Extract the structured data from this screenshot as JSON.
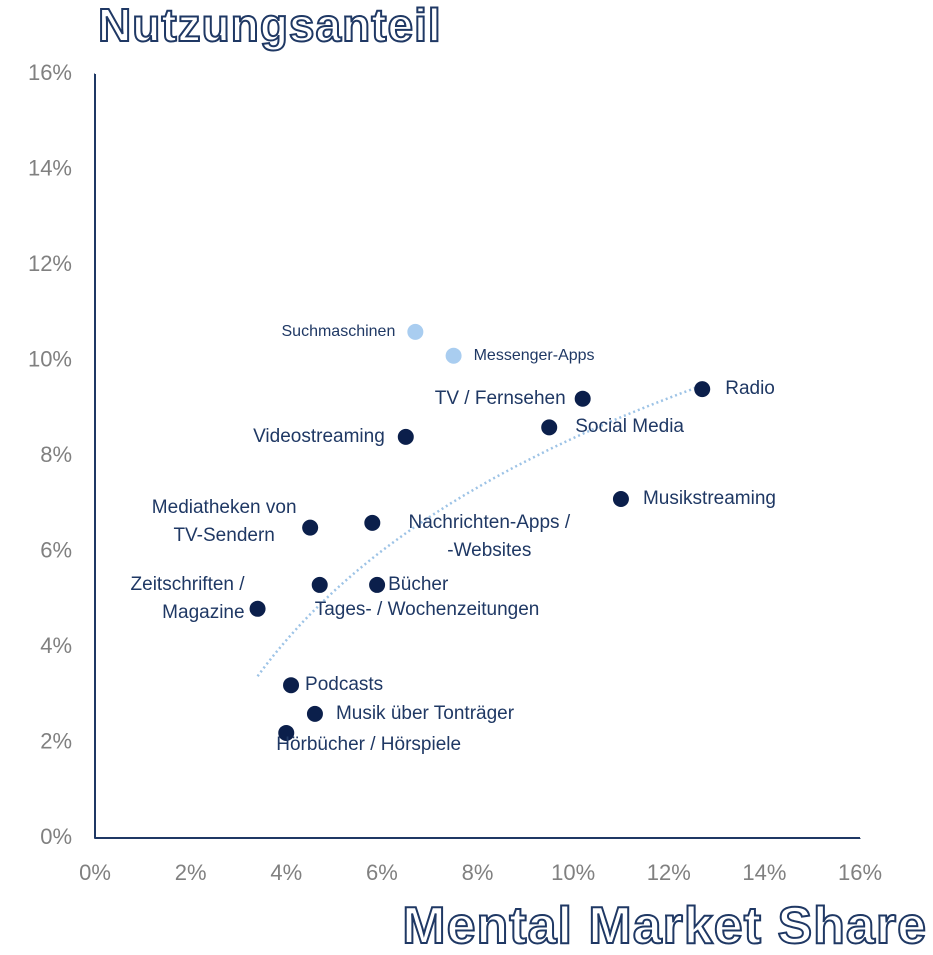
{
  "chart_data": {
    "type": "scatter",
    "title": "Nutzungsanteil",
    "x_label": "Mental Market Share",
    "xlim": [
      0,
      16
    ],
    "ylim": [
      0,
      16
    ],
    "xticks": [
      {
        "value": 0,
        "label": "0%"
      },
      {
        "value": 2,
        "label": "2%"
      },
      {
        "value": 4,
        "label": "4%"
      },
      {
        "value": 6,
        "label": "6%"
      },
      {
        "value": 8,
        "label": "8%"
      },
      {
        "value": 10,
        "label": "10%"
      },
      {
        "value": 12,
        "label": "12%"
      },
      {
        "value": 14,
        "label": "14%"
      },
      {
        "value": 16,
        "label": "16%"
      }
    ],
    "yticks": [
      {
        "value": 0,
        "label": "0%"
      },
      {
        "value": 2,
        "label": "2%"
      },
      {
        "value": 4,
        "label": "4%"
      },
      {
        "value": 6,
        "label": "6%"
      },
      {
        "value": 8,
        "label": "8%"
      },
      {
        "value": 10,
        "label": "10%"
      },
      {
        "value": 12,
        "label": "12%"
      },
      {
        "value": 14,
        "label": "14%"
      },
      {
        "value": 16,
        "label": "16%"
      }
    ],
    "trendline": "logarithmic",
    "trendline_color": "#9dc3e6",
    "points": [
      {
        "label": "Suchmaschinen",
        "x": 6.7,
        "y": 10.6,
        "color": "#a9cdf0"
      },
      {
        "label": "Messenger-Apps",
        "x": 7.5,
        "y": 10.1,
        "color": "#a9cdf0"
      },
      {
        "label": "TV / Fernsehen",
        "x": 10.2,
        "y": 9.2,
        "color": "#0b1f4b"
      },
      {
        "label": "Radio",
        "x": 12.7,
        "y": 9.4,
        "color": "#0b1f4b"
      },
      {
        "label": "Social Media",
        "x": 9.5,
        "y": 8.6,
        "color": "#0b1f4b"
      },
      {
        "label": "Videostreaming",
        "x": 6.5,
        "y": 8.4,
        "color": "#0b1f4b"
      },
      {
        "label": "Musikstreaming",
        "x": 11.0,
        "y": 7.1,
        "color": "#0b1f4b"
      },
      {
        "label": "Mediatheken von\nTV-Sendern",
        "x": 4.5,
        "y": 6.5,
        "color": "#0b1f4b"
      },
      {
        "label": "Nachrichten-Apps /\n-Websites",
        "x": 5.8,
        "y": 6.6,
        "color": "#0b1f4b"
      },
      {
        "label": "Tages- / Wochenzeitungen",
        "x": 4.7,
        "y": 5.3,
        "color": "#0b1f4b"
      },
      {
        "label": "Bücher",
        "x": 5.9,
        "y": 5.3,
        "color": "#0b1f4b"
      },
      {
        "label": "Zeitschriften /\nMagazine",
        "x": 3.4,
        "y": 4.8,
        "color": "#0b1f4b"
      },
      {
        "label": "Podcasts",
        "x": 4.1,
        "y": 3.2,
        "color": "#0b1f4b"
      },
      {
        "label": "Musik über Tonträger",
        "x": 4.6,
        "y": 2.6,
        "color": "#0b1f4b"
      },
      {
        "label": "Hörbücher / Hörspiele",
        "x": 4.0,
        "y": 2.2,
        "color": "#0b1f4b"
      }
    ]
  }
}
